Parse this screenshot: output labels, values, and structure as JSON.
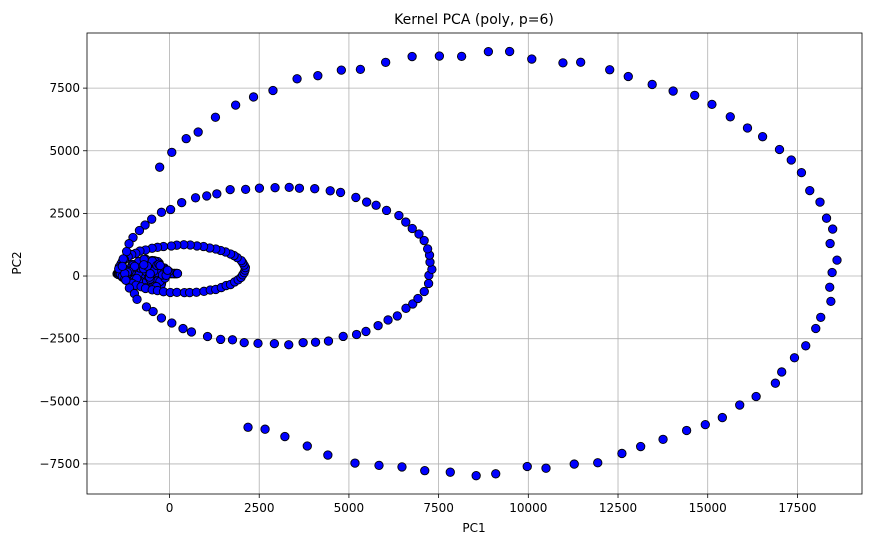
{
  "chart_data": {
    "type": "scatter",
    "title": "Kernel PCA (poly, p=6)",
    "xlabel": "PC1",
    "ylabel": "PC2",
    "xlim": [
      -2300,
      19300
    ],
    "ylim": [
      -8700,
      9700
    ],
    "xticks": [
      0,
      2500,
      5000,
      7500,
      10000,
      12500,
      15000,
      17500
    ],
    "yticks": [
      -7500,
      -5000,
      -2500,
      0,
      2500,
      5000,
      7500
    ],
    "grid": true,
    "marker_color": "#0000ff",
    "marker_edge_color": "#000000",
    "outer_ring": {
      "center": [
        8550,
        500
      ],
      "radii": [
        10000,
        8350
      ],
      "points": 72,
      "theta_start_deg": -130,
      "theta_end_deg": 152
    },
    "middle_ring": {
      "center": [
        3000,
        420
      ],
      "radii": [
        4300,
        3150
      ],
      "points": 70,
      "theta_start_deg": -180,
      "theta_end_deg": 180
    },
    "inner_ring": {
      "center": [
        350,
        280
      ],
      "radii": [
        1750,
        950
      ],
      "points": 60,
      "theta_start_deg": -180,
      "theta_end_deg": 180
    },
    "cusp_cluster": {
      "tip": [
        -1450,
        100
      ],
      "length": 1700,
      "points": 160
    }
  }
}
